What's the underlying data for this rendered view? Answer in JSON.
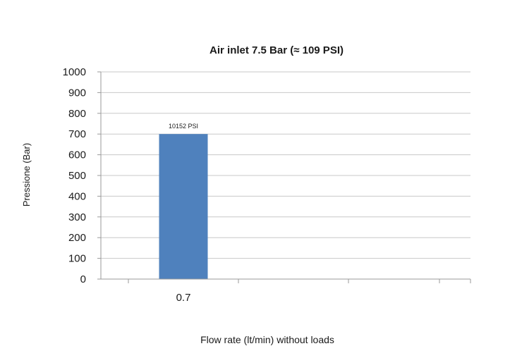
{
  "chart_data": {
    "type": "bar",
    "title": "Air inlet 7.5 Bar (≈ 109 PSI)",
    "xlabel": "Flow rate (lt/min) without loads",
    "ylabel": "Pressione (Bar)",
    "categories": [
      "0.7",
      "",
      "",
      ""
    ],
    "values": [
      700,
      null,
      null,
      null
    ],
    "data_labels": [
      "10152 PSI",
      "",
      "",
      ""
    ],
    "ylim": [
      0,
      1000
    ],
    "yticks": [
      0,
      100,
      200,
      300,
      400,
      500,
      600,
      700,
      800,
      900,
      1000
    ],
    "grid": true,
    "legend": "none",
    "colors": {
      "bar": "#4f81bd",
      "grid": "#c8c8c8",
      "axis": "#9a9a9a"
    }
  }
}
